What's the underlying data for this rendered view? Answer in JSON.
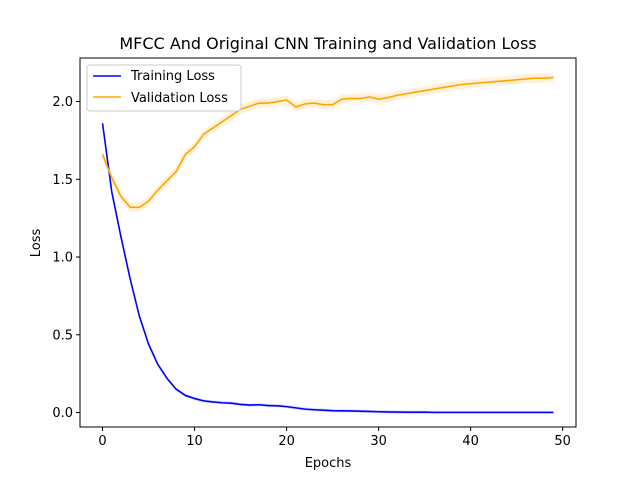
{
  "chart_data": {
    "type": "line",
    "title": "MFCC And Original CNN Training and Validation Loss",
    "xlabel": "Epochs",
    "ylabel": "Loss",
    "xlim": [
      -2.45,
      51.45
    ],
    "ylim": [
      -0.093,
      2.28
    ],
    "xticks": [
      0,
      10,
      20,
      30,
      40,
      50
    ],
    "xtick_labels": [
      "0",
      "10",
      "20",
      "30",
      "40",
      "50"
    ],
    "yticks": [
      0.0,
      0.5,
      1.0,
      1.5,
      2.0
    ],
    "ytick_labels": [
      "0.0",
      "0.5",
      "1.0",
      "1.5",
      "2.0"
    ],
    "grid": false,
    "legend_position": "top-left",
    "x": [
      0,
      1,
      2,
      3,
      4,
      5,
      6,
      7,
      8,
      9,
      10,
      11,
      12,
      13,
      14,
      15,
      16,
      17,
      18,
      19,
      20,
      21,
      22,
      23,
      24,
      25,
      26,
      27,
      28,
      29,
      30,
      31,
      32,
      33,
      34,
      35,
      36,
      37,
      38,
      39,
      40,
      41,
      42,
      43,
      44,
      45,
      46,
      47,
      48,
      49
    ],
    "series": [
      {
        "name": "Training Loss",
        "color": "#0000ff",
        "values": [
          1.86,
          1.42,
          1.13,
          0.86,
          0.62,
          0.44,
          0.31,
          0.22,
          0.15,
          0.11,
          0.09,
          0.075,
          0.068,
          0.063,
          0.06,
          0.052,
          0.048,
          0.05,
          0.045,
          0.043,
          0.038,
          0.03,
          0.022,
          0.018,
          0.015,
          0.012,
          0.011,
          0.01,
          0.009,
          0.007,
          0.005,
          0.004,
          0.003,
          0.002,
          0.002,
          0.002,
          0.001,
          0.001,
          0.001,
          0.001,
          0.001,
          0.001,
          0.001,
          0.001,
          0.001,
          0.001,
          0.001,
          0.001,
          0.001,
          0.001
        ],
        "band": 0.01
      },
      {
        "name": "Validation Loss",
        "color": "#ffa500",
        "values": [
          1.66,
          1.51,
          1.39,
          1.32,
          1.32,
          1.36,
          1.43,
          1.49,
          1.55,
          1.66,
          1.71,
          1.79,
          1.83,
          1.87,
          1.91,
          1.95,
          1.97,
          1.99,
          1.99,
          2.0,
          2.01,
          1.965,
          1.985,
          1.99,
          1.98,
          1.98,
          2.015,
          2.02,
          2.02,
          2.03,
          2.015,
          2.025,
          2.04,
          2.05,
          2.06,
          2.07,
          2.08,
          2.09,
          2.1,
          2.11,
          2.115,
          2.12,
          2.125,
          2.13,
          2.135,
          2.14,
          2.145,
          2.15,
          2.15,
          2.155
        ],
        "band": 0.03
      }
    ]
  }
}
